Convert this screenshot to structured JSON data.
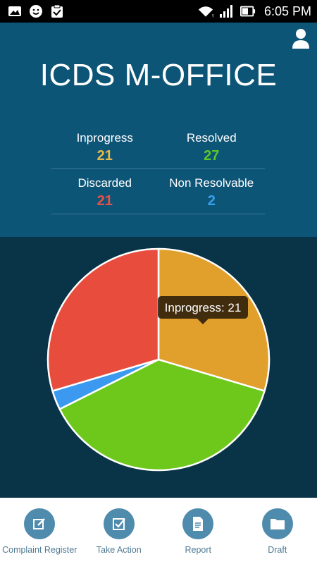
{
  "status_bar": {
    "time": "6:05 PM",
    "left_icons": [
      "gallery-icon",
      "smiley-icon",
      "clipboard-check-icon"
    ],
    "right_icons": [
      "wifi-icon",
      "signal-icon",
      "battery-icon"
    ]
  },
  "header": {
    "title": "ICDS M-OFFICE",
    "profile_icon": "user-icon"
  },
  "stats": [
    {
      "label": "Inprogress",
      "value": "21",
      "color": "#e5b84a"
    },
    {
      "label": "Resolved",
      "value": "27",
      "color": "#5cc72a"
    },
    {
      "label": "Discarded",
      "value": "21",
      "color": "#e8504a"
    },
    {
      "label": "Non Resolvable",
      "value": "2",
      "color": "#3aa0f0"
    }
  ],
  "chart_data": {
    "type": "pie",
    "slices": [
      {
        "label": "Inprogress",
        "value": 21,
        "color": "#e19f2b"
      },
      {
        "label": "Resolved",
        "value": 27,
        "color": "#6ec81c"
      },
      {
        "label": "Non Resolvable",
        "value": 2,
        "color": "#3b9af0"
      },
      {
        "label": "Discarded",
        "value": 21,
        "color": "#e84c3d"
      }
    ],
    "tooltip": "Inprogress: 21",
    "start_angle_deg": 0,
    "direction": "clockwise"
  },
  "bottom_nav": [
    {
      "label": "Complaint Register",
      "icon": "edit-icon"
    },
    {
      "label": "Take Action",
      "icon": "checkbox-icon"
    },
    {
      "label": "Report",
      "icon": "document-icon"
    },
    {
      "label": "Draft",
      "icon": "folder-icon"
    }
  ],
  "colors": {
    "header_bg": "#0d5577",
    "chart_bg": "#093447",
    "nav_circle": "#4f8bad"
  }
}
